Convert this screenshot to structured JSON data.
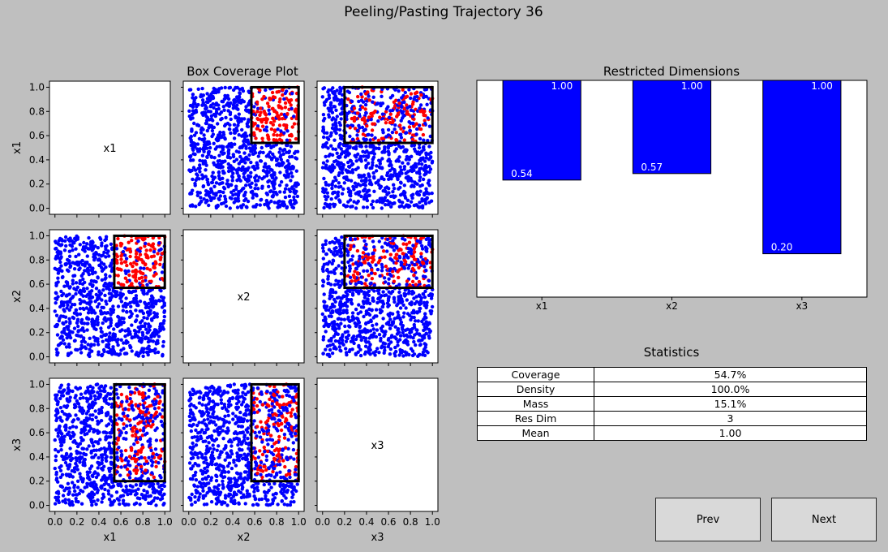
{
  "figure": {
    "title": "Peeling/Pasting Trajectory 36",
    "scatter_title": "Box Coverage Plot",
    "bar_title": "Restricted Dimensions",
    "stats_title": "Statistics"
  },
  "colors": {
    "background": "#bfbfbf",
    "point_outside": "#0000ff",
    "point_inside": "#ff0000",
    "bar": "#0000ff",
    "box": "#000000"
  },
  "chart_data": [
    {
      "type": "scatter",
      "title": "Box Coverage Plot",
      "dimensions": [
        "x1",
        "x2",
        "x3"
      ],
      "ticks": [
        "0.0",
        "0.2",
        "0.4",
        "0.6",
        "0.8",
        "1.0"
      ],
      "xlim": [
        -0.05,
        1.05
      ],
      "ylim": [
        -0.05,
        1.05
      ],
      "n_points": 1000,
      "box": {
        "x1": [
          0.54,
          1.0
        ],
        "x2": [
          0.57,
          1.0
        ],
        "x3": [
          0.2,
          1.0
        ]
      },
      "legend": "none"
    },
    {
      "type": "bar",
      "title": "Restricted Dimensions",
      "categories": [
        "x1",
        "x2",
        "x3"
      ],
      "lower": [
        0.54,
        0.57,
        0.2
      ],
      "upper": [
        1.0,
        1.0,
        1.0
      ],
      "lower_labels": [
        "0.54",
        "0.57",
        "0.20"
      ],
      "upper_labels": [
        "1.00",
        "1.00",
        "1.00"
      ],
      "ylim": [
        0,
        1
      ],
      "grid": false
    },
    {
      "type": "table",
      "title": "Statistics",
      "rows": [
        {
          "label": "Coverage",
          "value": "54.7%"
        },
        {
          "label": "Density",
          "value": "100.0%"
        },
        {
          "label": "Mass",
          "value": "15.1%"
        },
        {
          "label": "Res Dim",
          "value": "3"
        },
        {
          "label": "Mean",
          "value": "1.00"
        }
      ]
    }
  ],
  "buttons": {
    "prev": "Prev",
    "next": "Next"
  }
}
